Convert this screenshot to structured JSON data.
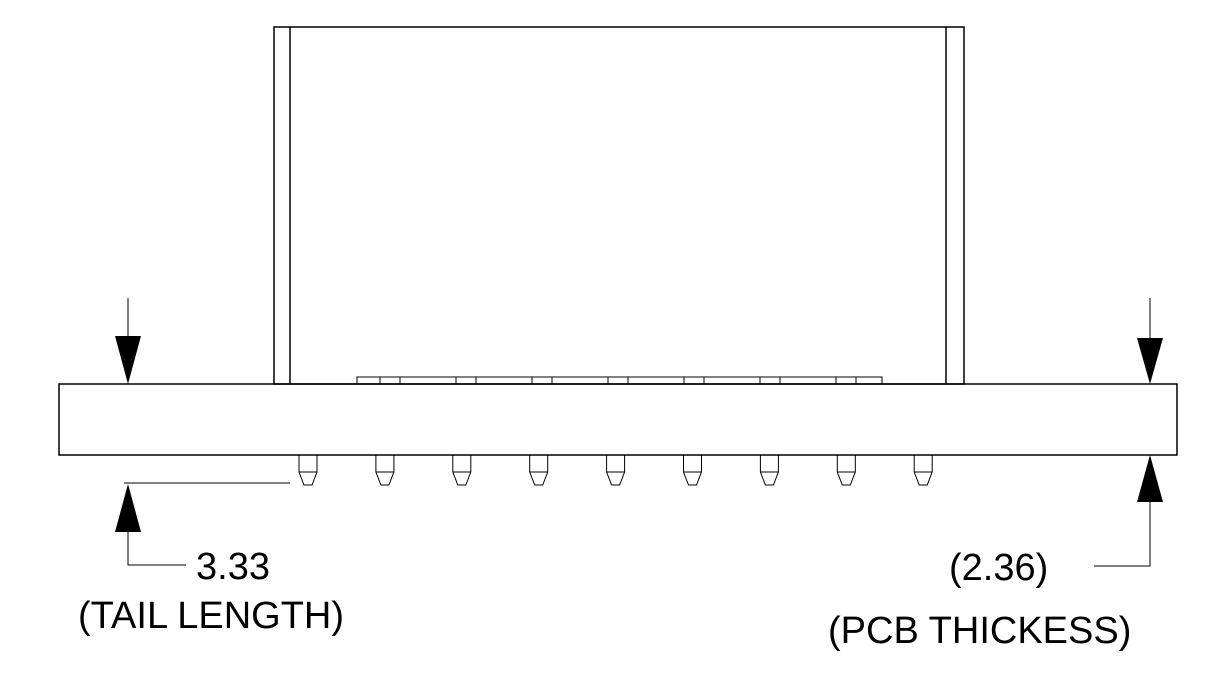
{
  "dimensions": {
    "tail_length": {
      "value": "3.33",
      "caption": "(TAIL LENGTH)"
    },
    "pcb_thickness": {
      "value": "(2.36)",
      "caption": "(PCB THICKESS)"
    }
  },
  "pin_count": 9
}
